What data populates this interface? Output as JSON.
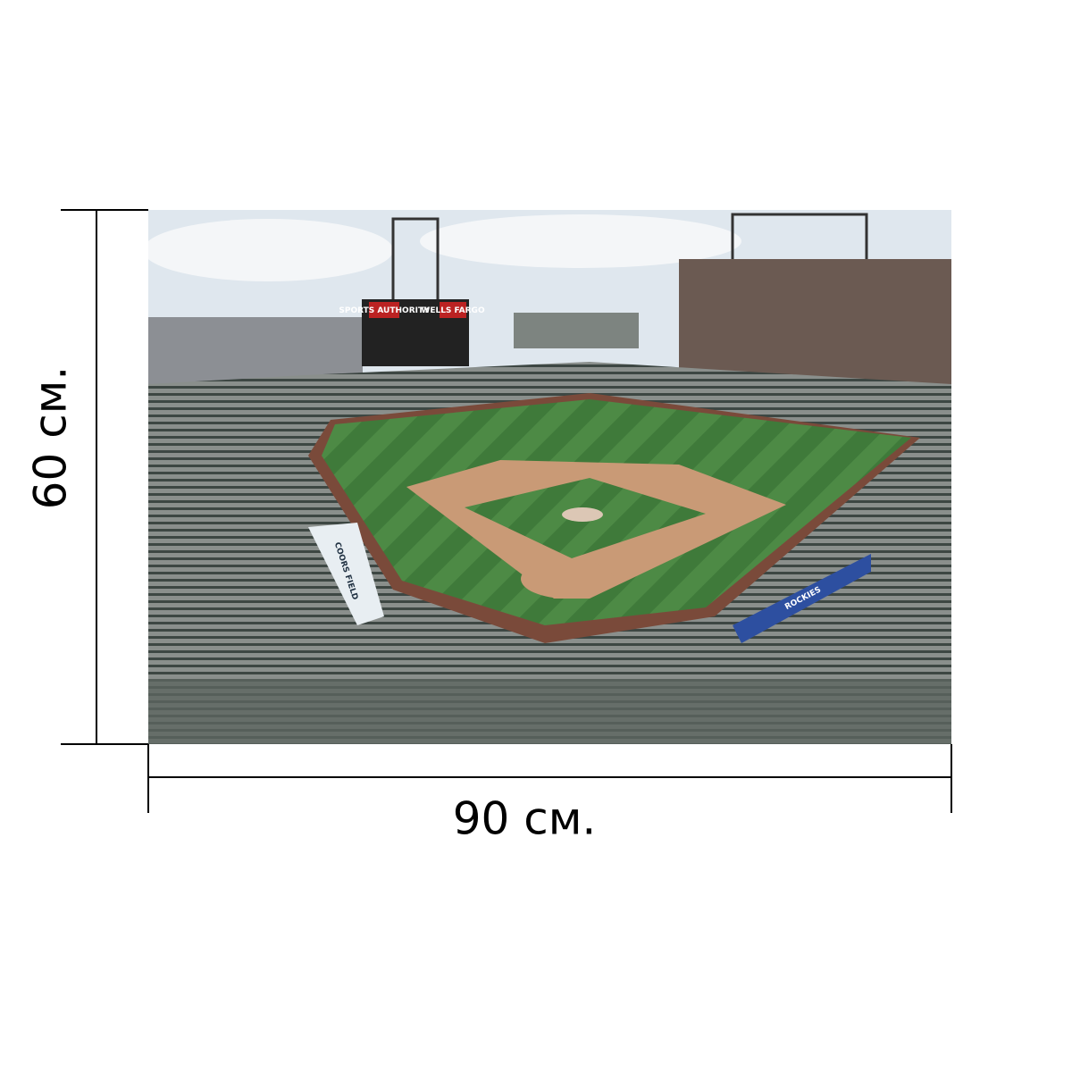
{
  "dimensions": {
    "height_label": "60 см.",
    "width_label": "90 см."
  },
  "photo_signs": {
    "left_board": "SPORTS AUTHORITY",
    "right_board": "WELLS FARGO",
    "banner_right": "ROCKIES",
    "banner_left": "COORS FIELD"
  }
}
